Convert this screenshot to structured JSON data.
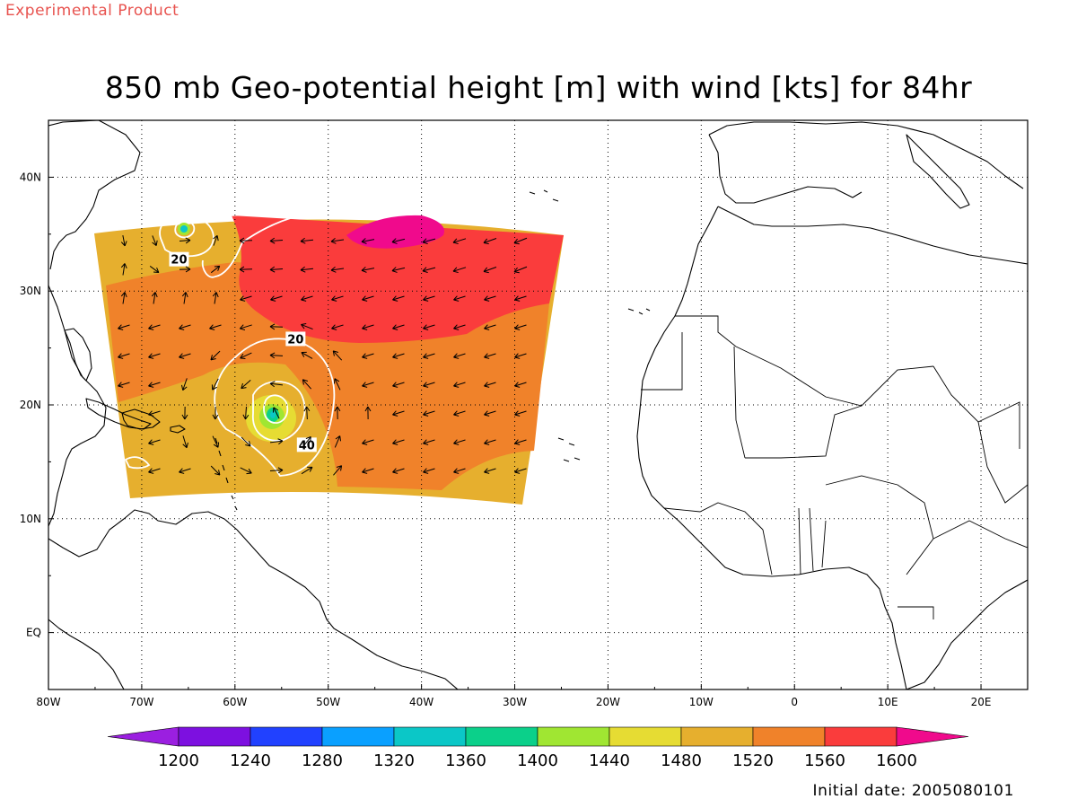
{
  "header": {
    "product_label": "Experimental Product",
    "title": "850 mb Geo-potential height [m] with wind [kts] for 84hr"
  },
  "footer": {
    "initial_date": "Initial date: 2005080101"
  },
  "map": {
    "lon_range": [
      -80,
      25
    ],
    "lat_range": [
      -5,
      45
    ],
    "lon_ticks": [
      {
        "value": -80,
        "label": "80W"
      },
      {
        "value": -70,
        "label": "70W"
      },
      {
        "value": -60,
        "label": "60W"
      },
      {
        "value": -50,
        "label": "50W"
      },
      {
        "value": -40,
        "label": "40W"
      },
      {
        "value": -30,
        "label": "30W"
      },
      {
        "value": -20,
        "label": "20W"
      },
      {
        "value": -10,
        "label": "10W"
      },
      {
        "value": 0,
        "label": "0"
      },
      {
        "value": 10,
        "label": "10E"
      },
      {
        "value": 20,
        "label": "20E"
      }
    ],
    "lat_ticks": [
      {
        "value": 40,
        "label": "40N"
      },
      {
        "value": 30,
        "label": "30N"
      },
      {
        "value": 20,
        "label": "20N"
      },
      {
        "value": 10,
        "label": "10N"
      },
      {
        "value": 0,
        "label": "EQ"
      }
    ],
    "grid": "dotted",
    "wind_contour_labels": [
      {
        "label": "20",
        "lon": -66,
        "lat": 32.8
      },
      {
        "label": "20",
        "lon": -53.5,
        "lat": 25.8
      },
      {
        "label": "40",
        "lon": -52.3,
        "lat": 16.5
      }
    ]
  },
  "colorbar": {
    "levels": [
      "1200",
      "1240",
      "1280",
      "1320",
      "1360",
      "1400",
      "1440",
      "1480",
      "1520",
      "1560",
      "1600"
    ],
    "colors": [
      "#9b1fe0",
      "#7d10e0",
      "#2141ff",
      "#0aa0ff",
      "#0bc7c7",
      "#0bd08a",
      "#a0e632",
      "#e6dc33",
      "#e6af2e",
      "#f0822a",
      "#fa3c3c",
      "#f00a8c"
    ]
  }
}
